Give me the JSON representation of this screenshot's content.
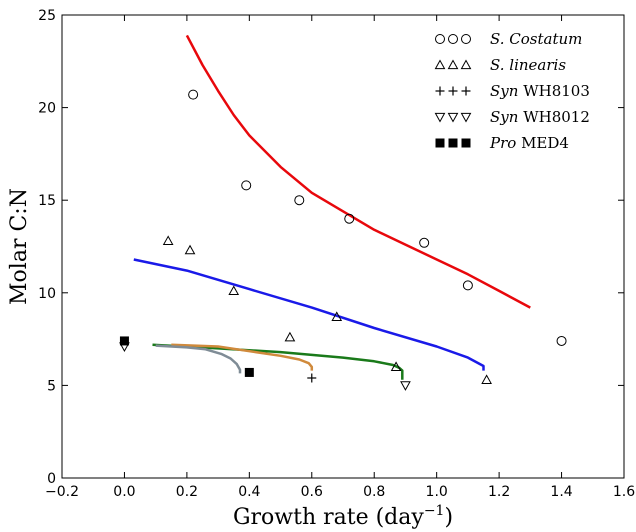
{
  "chart_data": {
    "type": "scatter",
    "xlabel": "Growth rate (day",
    "xlabel_sup": "−1",
    "xlabel_end": ")",
    "ylabel": "Molar C:N",
    "xlim": [
      -0.2,
      1.6
    ],
    "ylim": [
      0,
      25
    ],
    "xticks": [
      -0.2,
      0.0,
      0.2,
      0.4,
      0.6,
      0.8,
      1.0,
      1.2,
      1.4,
      1.6
    ],
    "xtick_labels": [
      "−0.2",
      "0.0",
      "0.2",
      "0.4",
      "0.6",
      "0.8",
      "1.0",
      "1.2",
      "1.4",
      "1.6"
    ],
    "yticks": [
      0,
      5,
      10,
      15,
      20,
      25
    ],
    "ytick_labels": [
      "0",
      "5",
      "10",
      "15",
      "20",
      "25"
    ],
    "grid": false,
    "legend_placement": "top-right",
    "series": [
      {
        "name_italic": "S. Costatum",
        "name_plain": "",
        "legend_symbols": "○○○",
        "marker": "circle",
        "points": [
          [
            0.22,
            20.7
          ],
          [
            0.39,
            15.8
          ],
          [
            0.56,
            15.0
          ],
          [
            0.72,
            14.0
          ],
          [
            0.96,
            12.7
          ],
          [
            1.1,
            10.4
          ],
          [
            1.4,
            7.4
          ]
        ]
      },
      {
        "name_italic": "S. linearis",
        "name_plain": "",
        "legend_symbols": "△△△",
        "marker": "triangle-up",
        "points": [
          [
            0.14,
            12.8
          ],
          [
            0.21,
            12.3
          ],
          [
            0.35,
            10.1
          ],
          [
            0.53,
            7.6
          ],
          [
            0.68,
            8.7
          ],
          [
            0.87,
            6.0
          ],
          [
            1.16,
            5.3
          ]
        ]
      },
      {
        "name_italic": "Syn",
        "name_plain": " WH8103",
        "legend_symbols": "+++",
        "marker": "plus",
        "points": [
          [
            0.6,
            5.4
          ]
        ]
      },
      {
        "name_italic": "Syn",
        "name_plain": " WH8012",
        "legend_symbols": "▽▽▽",
        "marker": "triangle-down",
        "points": [
          [
            0.0,
            7.1
          ],
          [
            0.9,
            5.0
          ]
        ]
      },
      {
        "name_italic": "Pro",
        "name_plain": " MED4",
        "legend_symbols": "■■■",
        "marker": "square",
        "points": [
          [
            0.0,
            7.4
          ],
          [
            0.4,
            5.7
          ]
        ]
      }
    ],
    "curves": [
      {
        "color": "#e8080c",
        "points": [
          [
            0.2,
            23.9
          ],
          [
            0.25,
            22.3
          ],
          [
            0.3,
            20.9
          ],
          [
            0.35,
            19.6
          ],
          [
            0.4,
            18.5
          ],
          [
            0.5,
            16.8
          ],
          [
            0.6,
            15.4
          ],
          [
            0.7,
            14.4
          ],
          [
            0.8,
            13.4
          ],
          [
            0.9,
            12.6
          ],
          [
            1.0,
            11.8
          ],
          [
            1.1,
            11.0
          ],
          [
            1.2,
            10.1
          ],
          [
            1.3,
            9.2
          ]
        ]
      },
      {
        "color": "#1a1ae8",
        "points": [
          [
            0.03,
            11.8
          ],
          [
            0.2,
            11.2
          ],
          [
            0.4,
            10.2
          ],
          [
            0.6,
            9.2
          ],
          [
            0.8,
            8.1
          ],
          [
            1.0,
            7.1
          ],
          [
            1.1,
            6.5
          ],
          [
            1.15,
            6.05
          ],
          [
            1.15,
            5.8
          ]
        ]
      },
      {
        "color": "#1a7a1a",
        "points": [
          [
            0.09,
            7.2
          ],
          [
            0.3,
            7.0
          ],
          [
            0.5,
            6.8
          ],
          [
            0.7,
            6.5
          ],
          [
            0.8,
            6.3
          ],
          [
            0.86,
            6.1
          ],
          [
            0.88,
            5.95
          ],
          [
            0.89,
            5.8
          ],
          [
            0.89,
            5.3
          ]
        ]
      },
      {
        "color": "#d08a3c",
        "points": [
          [
            0.15,
            7.2
          ],
          [
            0.3,
            7.1
          ],
          [
            0.42,
            6.8
          ],
          [
            0.5,
            6.6
          ],
          [
            0.56,
            6.4
          ],
          [
            0.59,
            6.2
          ],
          [
            0.6,
            6.0
          ],
          [
            0.6,
            5.8
          ]
        ]
      },
      {
        "color": "#7f8c96",
        "points": [
          [
            0.1,
            7.15
          ],
          [
            0.2,
            7.05
          ],
          [
            0.26,
            6.95
          ],
          [
            0.31,
            6.7
          ],
          [
            0.34,
            6.45
          ],
          [
            0.36,
            6.15
          ],
          [
            0.37,
            5.85
          ],
          [
            0.37,
            5.65
          ]
        ]
      }
    ]
  }
}
